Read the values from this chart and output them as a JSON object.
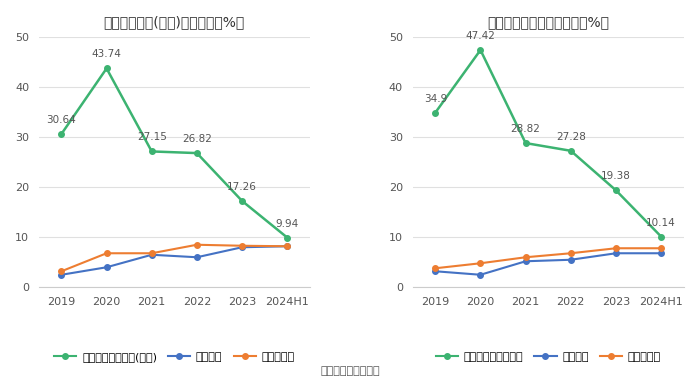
{
  "left_title": "净资产收益率(加权)历年情况（%）",
  "right_title": "投入资本回报率历年情况（%）",
  "x_labels": [
    "2019",
    "2020",
    "2021",
    "2022",
    "2023",
    "2024H1"
  ],
  "left": {
    "company": [
      30.64,
      43.74,
      27.15,
      26.82,
      17.26,
      9.94
    ],
    "industry_mean": [
      2.5,
      4.0,
      6.5,
      6.0,
      8.0,
      8.2
    ],
    "industry_median": [
      3.2,
      6.8,
      6.8,
      8.5,
      8.3,
      8.2
    ]
  },
  "right": {
    "company": [
      34.9,
      47.42,
      28.82,
      27.28,
      19.38,
      10.14
    ],
    "industry_mean": [
      3.2,
      2.5,
      5.2,
      5.5,
      6.8,
      6.8
    ],
    "industry_median": [
      3.8,
      4.8,
      6.0,
      6.8,
      7.8,
      7.8
    ]
  },
  "left_legend": [
    "公司净资产收益率(加权)",
    "行业均值",
    "行业中位数"
  ],
  "right_legend": [
    "公司投入资本回报率",
    "行业均值",
    "行业中位数"
  ],
  "footer": "数据来源：恒生聚源",
  "company_color": "#3cb371",
  "mean_color": "#4472c4",
  "median_color": "#ed7d31",
  "ylim": [
    0,
    50
  ],
  "yticks": [
    0,
    10,
    20,
    30,
    40,
    50
  ],
  "bg_color": "#ffffff",
  "grid_color": "#e0e0e0"
}
